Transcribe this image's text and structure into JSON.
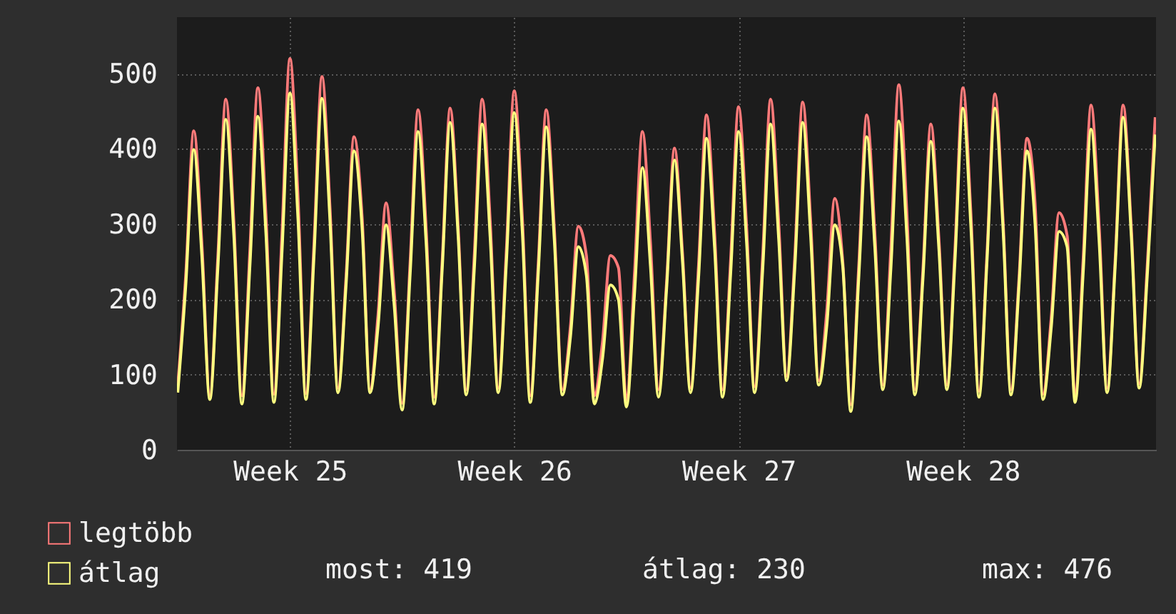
{
  "chart_data": {
    "type": "line",
    "categories": [
      null,
      null,
      null,
      null,
      null,
      null,
      null,
      null,
      null,
      null,
      null,
      null,
      null,
      null,
      "Week 25",
      null,
      null,
      null,
      null,
      null,
      null,
      null,
      null,
      null,
      null,
      null,
      null,
      null,
      null,
      null,
      null,
      null,
      null,
      null,
      null,
      null,
      null,
      null,
      null,
      null,
      null,
      null,
      "Week 26",
      null,
      null,
      null,
      null,
      null,
      null,
      null,
      null,
      null,
      null,
      null,
      null,
      null,
      null,
      null,
      null,
      null,
      null,
      null,
      null,
      null,
      null,
      null,
      null,
      null,
      null,
      null,
      "Week 27",
      null,
      null,
      null,
      null,
      null,
      null,
      null,
      null,
      null,
      null,
      null,
      null,
      null,
      null,
      null,
      null,
      null,
      null,
      null,
      null,
      null,
      null,
      null,
      null,
      null,
      null,
      null,
      "Week 28",
      null,
      null,
      null,
      null,
      null,
      null,
      null,
      null,
      null,
      null,
      null,
      null,
      null,
      null,
      null,
      null,
      null,
      null,
      null,
      null,
      null,
      null,
      null,
      null
    ],
    "series": [
      {
        "name": "legtöbb",
        "color": "#ff7a7a",
        "values": [
          86,
          233,
          424,
          276,
          72,
          256,
          466,
          303,
          72,
          265,
          481,
          313,
          74,
          286,
          520,
          338,
          75,
          273,
          496,
          322,
          82,
          229,
          416,
          311,
          80,
          180,
          328,
          213,
          62,
          249,
          452,
          294,
          70,
          250,
          454,
          295,
          80,
          256,
          466,
          303,
          82,
          262,
          477,
          310,
          72,
          249,
          452,
          294,
          80,
          163,
          297,
          258,
          72,
          142,
          258,
          242,
          66,
          233,
          423,
          275,
          80,
          221,
          401,
          261,
          82,
          245,
          445,
          289,
          80,
          251,
          456,
          296,
          84,
          256,
          466,
          303,
          98,
          254,
          462,
          303,
          92,
          184,
          334,
          250,
          60,
          245,
          445,
          289,
          86,
          267,
          485,
          315,
          80,
          238,
          433,
          281,
          86,
          265,
          481,
          313,
          78,
          260,
          473,
          307,
          80,
          228,
          414,
          328,
          74,
          173,
          315,
          285,
          72,
          252,
          458,
          298,
          82,
          252,
          458,
          298,
          88,
          243,
          442
        ]
      },
      {
        "name": "átlag",
        "color": "#ffff80",
        "values": [
          76,
          219,
          399,
          259,
          67,
          241,
          439,
          285,
          61,
          244,
          443,
          288,
          63,
          261,
          474,
          308,
          67,
          257,
          467,
          304,
          76,
          218,
          397,
          296,
          76,
          164,
          299,
          194,
          53,
          233,
          423,
          275,
          61,
          239,
          435,
          283,
          73,
          238,
          433,
          281,
          76,
          246,
          448,
          291,
          63,
          236,
          429,
          279,
          73,
          149,
          270,
          232,
          61,
          120,
          219,
          200,
          57,
          206,
          375,
          244,
          70,
          212,
          385,
          250,
          76,
          228,
          414,
          269,
          70,
          233,
          423,
          275,
          76,
          238,
          433,
          281,
          92,
          239,
          435,
          283,
          86,
          164,
          299,
          244,
          51,
          229,
          416,
          270,
          80,
          240,
          437,
          284,
          73,
          226,
          410,
          267,
          80,
          250,
          454,
          295,
          70,
          250,
          454,
          295,
          73,
          218,
          397,
          301,
          67,
          160,
          290,
          270,
          63,
          234,
          426,
          277,
          76,
          243,
          442,
          287,
          82,
          230,
          419
        ]
      }
    ],
    "ylim": [
      0,
      575
    ],
    "yticks": [
      0,
      100,
      200,
      300,
      400,
      500
    ],
    "grid": true,
    "legend": "bottom left",
    "annotations": [
      "most: 419",
      "átlag: 230",
      "max: 476"
    ]
  }
}
